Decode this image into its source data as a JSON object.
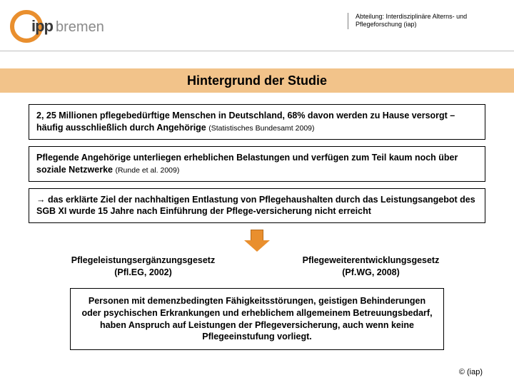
{
  "colors": {
    "accent": "#e98f2e",
    "band": "#f2c38a",
    "logo_ipp": "#3a3a3a",
    "logo_bremen": "#8a8a8a",
    "arrow_fill": "#e98f2e",
    "arrow_border": "#b86b1a"
  },
  "header": {
    "logo_ipp": "ipp",
    "logo_bremen": "bremen",
    "dept": "Abteilung: Interdisziplinäre Alterns- und Pflegeforschung (iap)"
  },
  "title": "Hintergrund der Studie",
  "boxes": [
    {
      "main": "2, 25 Millionen pflegebedürftige Menschen in Deutschland, 68% davon werden zu Hause versorgt – häufig ausschließlich durch Angehörige ",
      "cite": "(Statistisches Bundesamt 2009)"
    },
    {
      "main": "Pflegende Angehörige unterliegen erheblichen Belastungen und verfügen zum Teil kaum noch über soziale Netzwerke ",
      "cite": "(Runde et al. 2009)"
    },
    {
      "main": "→ das erklärte Ziel der nachhaltigen Entlastung von Pflegehaushalten durch das Leistungsangebot des SGB XI wurde 15 Jahre nach Einführung der Pflege-versicherung nicht erreicht",
      "cite": ""
    }
  ],
  "cols": {
    "left_line1": "Pflegeleistungsergänzungsgesetz",
    "left_line2": "(Pfl.EG, 2002)",
    "right_line1": "Pflegeweiterentwicklungsgesetz",
    "right_line2": "(Pf.WG, 2008)"
  },
  "final": "Personen mit demenzbedingten Fähigkeitsstörungen, geistigen Behinderungen oder psychischen Erkrankungen und erheblichem allgemeinem Betreuungsbedarf, haben Anspruch auf Leistungen der Pflegeversicherung, auch wenn keine Pflegeeinstufung vorliegt.",
  "footer": "© (iap)"
}
